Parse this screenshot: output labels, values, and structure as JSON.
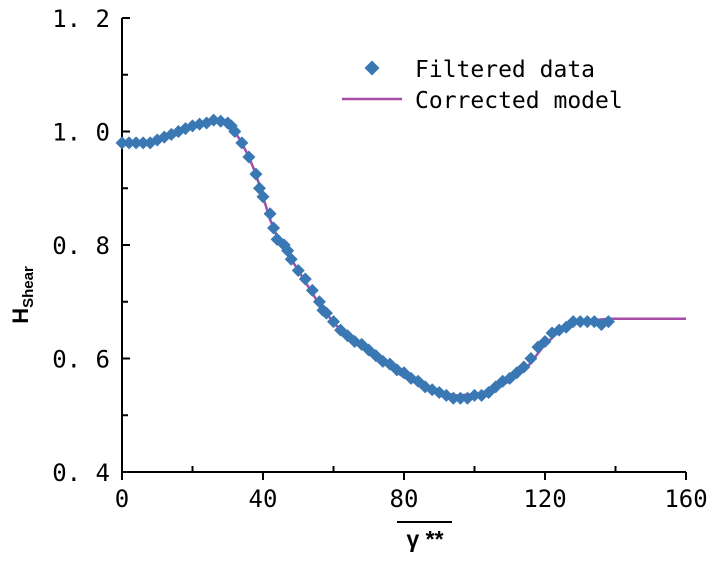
{
  "chart_data": {
    "type": "scatter",
    "xlabel": "γ **",
    "ylabel": {
      "main": "H",
      "sub": "Shear"
    },
    "xlim": [
      0,
      160
    ],
    "ylim": [
      0.4,
      1.2
    ],
    "xticks": [
      0,
      40,
      80,
      120,
      160
    ],
    "yticks": [
      0.4,
      0.6,
      0.8,
      1.0,
      1.2
    ],
    "xtick_labels": [
      "0",
      "40",
      "80",
      "120",
      "160"
    ],
    "ytick_labels": [
      "0. 4",
      "0. 6",
      "0. 8",
      "1. 0",
      "1. 2"
    ],
    "grid": false,
    "legend_position": "top-right",
    "colors": {
      "scatter": "#3a78b4",
      "line": "#a64ca6"
    },
    "series": [
      {
        "name": "Filtered data",
        "kind": "scatter",
        "x": [
          0,
          2,
          4,
          6,
          8,
          10,
          12,
          14,
          16,
          18,
          20,
          22,
          24,
          26,
          28,
          30,
          31,
          32,
          34,
          36,
          38,
          39,
          40,
          42,
          43,
          44,
          46,
          47,
          48,
          50,
          52,
          54,
          56,
          57,
          58,
          60,
          62,
          64,
          66,
          68,
          70,
          72,
          74,
          76,
          78,
          80,
          82,
          84,
          86,
          88,
          90,
          92,
          94,
          96,
          98,
          100,
          102,
          104,
          106,
          108,
          110,
          112,
          114,
          116,
          118,
          120,
          122,
          124,
          126,
          128,
          130,
          132,
          134,
          136,
          138
        ],
        "y": [
          0.98,
          0.98,
          0.98,
          0.98,
          0.98,
          0.985,
          0.99,
          0.995,
          1.0,
          1.005,
          1.01,
          1.013,
          1.015,
          1.02,
          1.018,
          1.015,
          1.01,
          1.0,
          0.98,
          0.955,
          0.925,
          0.9,
          0.885,
          0.855,
          0.83,
          0.81,
          0.8,
          0.79,
          0.775,
          0.755,
          0.74,
          0.72,
          0.7,
          0.685,
          0.68,
          0.665,
          0.65,
          0.64,
          0.63,
          0.625,
          0.615,
          0.605,
          0.595,
          0.59,
          0.58,
          0.575,
          0.565,
          0.56,
          0.55,
          0.545,
          0.54,
          0.535,
          0.53,
          0.53,
          0.53,
          0.535,
          0.535,
          0.54,
          0.55,
          0.56,
          0.565,
          0.575,
          0.585,
          0.6,
          0.62,
          0.63,
          0.645,
          0.65,
          0.655,
          0.665,
          0.665,
          0.665,
          0.665,
          0.66,
          0.665
        ]
      },
      {
        "name": "Corrected model",
        "kind": "line",
        "x": [
          0,
          5,
          10,
          15,
          20,
          25,
          28,
          30,
          32,
          34,
          36,
          38,
          40,
          42,
          44,
          46,
          48,
          50,
          55,
          60,
          65,
          70,
          75,
          80,
          85,
          90,
          95,
          100,
          105,
          110,
          115,
          120,
          125,
          130,
          138,
          160
        ],
        "y": [
          0.98,
          0.98,
          0.982,
          0.993,
          1.007,
          1.02,
          1.022,
          1.015,
          1.0,
          0.98,
          0.955,
          0.925,
          0.885,
          0.845,
          0.815,
          0.795,
          0.775,
          0.755,
          0.705,
          0.663,
          0.633,
          0.61,
          0.588,
          0.567,
          0.552,
          0.54,
          0.535,
          0.537,
          0.545,
          0.56,
          0.585,
          0.625,
          0.653,
          0.665,
          0.67,
          0.67
        ]
      }
    ]
  }
}
